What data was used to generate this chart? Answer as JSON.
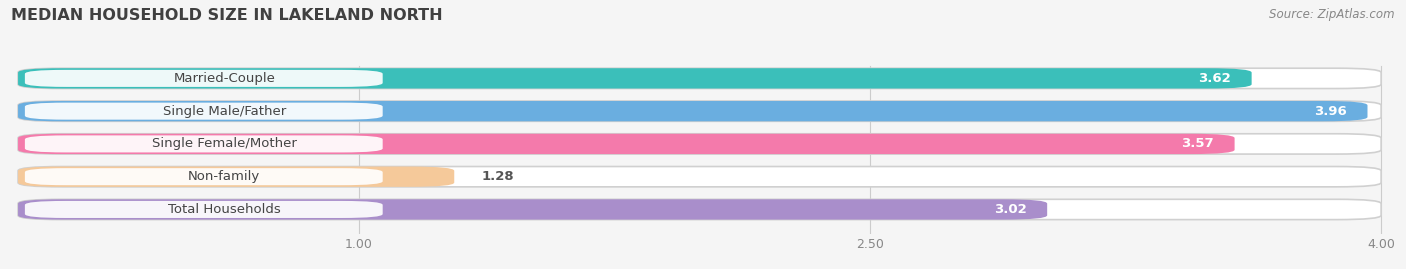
{
  "title": "MEDIAN HOUSEHOLD SIZE IN LAKELAND NORTH",
  "source": "Source: ZipAtlas.com",
  "categories": [
    "Married-Couple",
    "Single Male/Father",
    "Single Female/Mother",
    "Non-family",
    "Total Households"
  ],
  "values": [
    3.62,
    3.96,
    3.57,
    1.28,
    3.02
  ],
  "bar_colors": [
    "#3bbfba",
    "#6aaee0",
    "#f47aab",
    "#f5c99a",
    "#a98ecb"
  ],
  "xmin": 0.0,
  "xmax": 4.0,
  "xticks": [
    1.0,
    2.5,
    4.0
  ],
  "bar_height": 0.62,
  "background_color": "#f5f5f5",
  "bar_bg_color": "#e6e6e6",
  "title_fontsize": 11.5,
  "label_fontsize": 9.5,
  "value_fontsize": 9.5,
  "source_fontsize": 8.5
}
